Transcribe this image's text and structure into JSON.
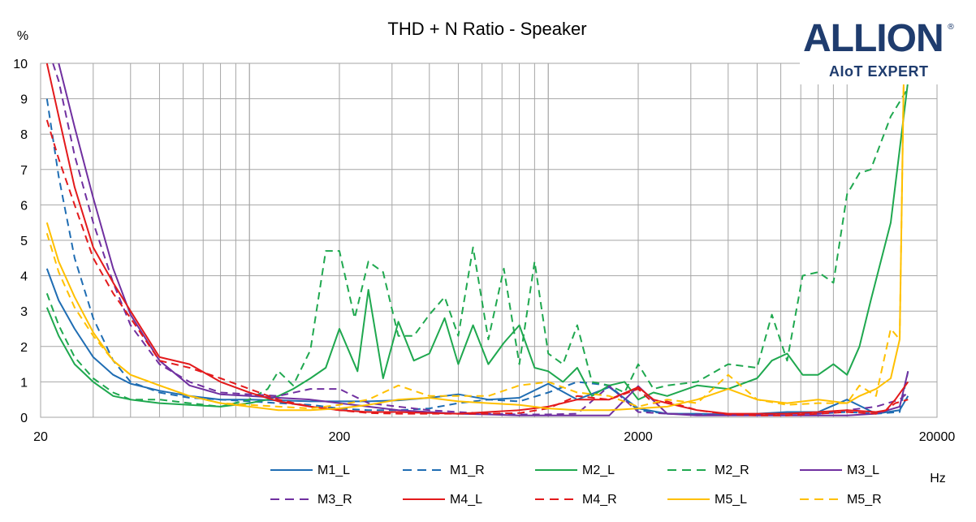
{
  "logo": {
    "main": "ALLION",
    "registered": "®",
    "tagline": "AIoT EXPERT"
  },
  "chart_data": {
    "type": "line",
    "title": "THD + N Ratio - Speaker",
    "ylabel": "%",
    "xlabel": "Hz",
    "xscale": "log",
    "xlim": [
      20,
      20000
    ],
    "ylim": [
      0,
      10
    ],
    "xticks": [
      "20",
      "200",
      "2000",
      "20000"
    ],
    "yticks": [
      "0",
      "1",
      "2",
      "3",
      "4",
      "5",
      "6",
      "7",
      "8",
      "9",
      "10"
    ],
    "grid": true,
    "legend_position": "bottom",
    "series": [
      {
        "name": "M1_L",
        "color": "#1f6db3",
        "dash": false,
        "x": [
          21,
          23,
          26,
          30,
          35,
          40,
          50,
          63,
          80,
          100,
          125,
          160,
          200,
          250,
          315,
          400,
          500,
          630,
          800,
          1000,
          1250,
          1600,
          2000,
          2500,
          3150,
          4000,
          5000,
          6300,
          8000,
          10000,
          12500,
          15000,
          16000
        ],
        "y": [
          4.2,
          3.3,
          2.5,
          1.7,
          1.2,
          0.95,
          0.75,
          0.6,
          0.5,
          0.5,
          0.48,
          0.45,
          0.45,
          0.45,
          0.48,
          0.55,
          0.65,
          0.5,
          0.55,
          0.95,
          0.5,
          0.85,
          0.25,
          0.1,
          0.1,
          0.08,
          0.1,
          0.15,
          0.15,
          0.5,
          0.1,
          0.2,
          0.6
        ]
      },
      {
        "name": "M1_R",
        "color": "#1f6db3",
        "dash": true,
        "x": [
          21,
          23,
          26,
          30,
          35,
          40,
          50,
          63,
          80,
          100,
          125,
          160,
          200,
          250,
          315,
          400,
          500,
          630,
          800,
          1000,
          1250,
          1600,
          2000,
          2500,
          3150,
          4000,
          5000,
          6300,
          8000,
          10000,
          12500,
          15000,
          16000
        ],
        "y": [
          9.0,
          6.8,
          4.5,
          2.8,
          1.6,
          1.0,
          0.7,
          0.55,
          0.5,
          0.45,
          0.4,
          0.35,
          0.25,
          0.2,
          0.2,
          0.25,
          0.4,
          0.5,
          0.45,
          0.7,
          1.0,
          0.9,
          0.2,
          0.1,
          0.08,
          0.08,
          0.08,
          0.1,
          0.1,
          0.15,
          0.1,
          0.15,
          1.3
        ]
      },
      {
        "name": "M2_L",
        "color": "#1fa84f",
        "dash": false,
        "x": [
          21,
          23,
          26,
          30,
          35,
          40,
          50,
          63,
          80,
          100,
          115,
          125,
          140,
          160,
          180,
          200,
          230,
          250,
          280,
          315,
          355,
          400,
          450,
          500,
          560,
          630,
          710,
          800,
          900,
          1000,
          1120,
          1250,
          1400,
          1600,
          1800,
          2000,
          2250,
          2500,
          3150,
          4000,
          5000,
          5600,
          6300,
          7100,
          8000,
          9000,
          10000,
          11000,
          12000,
          14000,
          16000
        ],
        "y": [
          3.1,
          2.3,
          1.5,
          1.0,
          0.6,
          0.5,
          0.4,
          0.35,
          0.3,
          0.4,
          0.5,
          0.6,
          0.8,
          1.1,
          1.4,
          2.5,
          1.3,
          3.6,
          1.1,
          2.7,
          1.6,
          1.8,
          2.8,
          1.5,
          2.6,
          1.5,
          2.1,
          2.6,
          1.4,
          1.3,
          1.0,
          1.4,
          0.6,
          0.9,
          1.0,
          0.5,
          0.7,
          0.6,
          0.9,
          0.8,
          1.1,
          1.6,
          1.8,
          1.2,
          1.2,
          1.5,
          1.2,
          2.0,
          3.3,
          5.5,
          9.5
        ]
      },
      {
        "name": "M2_R",
        "color": "#1fa84f",
        "dash": true,
        "x": [
          21,
          23,
          26,
          30,
          35,
          40,
          50,
          63,
          80,
          100,
          115,
          125,
          140,
          160,
          180,
          200,
          225,
          250,
          280,
          315,
          355,
          400,
          450,
          500,
          560,
          630,
          710,
          800,
          900,
          1000,
          1120,
          1250,
          1400,
          1600,
          1800,
          2000,
          2250,
          2500,
          3150,
          4000,
          5000,
          5600,
          6300,
          7100,
          8000,
          9000,
          10000,
          11000,
          12000,
          14000,
          16000
        ],
        "y": [
          3.5,
          2.6,
          1.7,
          1.1,
          0.7,
          0.5,
          0.5,
          0.4,
          0.3,
          0.5,
          0.8,
          1.3,
          0.9,
          1.9,
          4.7,
          4.7,
          2.8,
          4.4,
          4.1,
          2.3,
          2.3,
          2.9,
          3.4,
          2.3,
          4.8,
          2.2,
          4.2,
          1.5,
          4.4,
          1.8,
          1.5,
          2.6,
          1.0,
          0.9,
          0.7,
          1.5,
          0.8,
          0.9,
          1.0,
          1.5,
          1.4,
          2.9,
          1.6,
          4.0,
          4.1,
          3.8,
          6.3,
          6.9,
          7.0,
          8.5,
          9.3
        ]
      },
      {
        "name": "M3_L",
        "color": "#7030a0",
        "dash": false,
        "x": [
          23,
          26,
          30,
          35,
          40,
          50,
          63,
          80,
          100,
          125,
          160,
          200,
          250,
          315,
          400,
          500,
          630,
          800,
          1000,
          1250,
          1600,
          2000,
          2500,
          3150,
          4000,
          5000,
          6300,
          8000,
          10000,
          12500,
          15000,
          16000
        ],
        "y": [
          10.0,
          8.2,
          6.2,
          4.2,
          2.9,
          1.6,
          0.9,
          0.65,
          0.6,
          0.55,
          0.5,
          0.4,
          0.3,
          0.2,
          0.15,
          0.1,
          0.08,
          0.05,
          0.05,
          0.05,
          0.05,
          0.88,
          0.1,
          0.05,
          0.05,
          0.05,
          0.05,
          0.05,
          0.05,
          0.1,
          0.3,
          1.3
        ]
      },
      {
        "name": "M3_R",
        "color": "#7030a0",
        "dash": true,
        "x": [
          22,
          23,
          26,
          30,
          35,
          40,
          50,
          63,
          80,
          100,
          125,
          160,
          200,
          250,
          315,
          400,
          500,
          630,
          800,
          1000,
          1250,
          1600,
          2000,
          2500,
          3150,
          4000,
          5000,
          6300,
          8000,
          10000,
          12500,
          15000,
          16000
        ],
        "y": [
          10.0,
          9.5,
          7.4,
          5.5,
          3.8,
          2.6,
          1.5,
          1.0,
          0.7,
          0.65,
          0.6,
          0.8,
          0.8,
          0.4,
          0.3,
          0.2,
          0.15,
          0.1,
          0.08,
          0.08,
          0.1,
          0.88,
          0.15,
          0.1,
          0.08,
          0.08,
          0.08,
          0.1,
          0.1,
          0.2,
          0.3,
          0.5,
          0.7
        ]
      },
      {
        "name": "M4_L",
        "color": "#e31a1c",
        "dash": false,
        "x": [
          21,
          23,
          26,
          30,
          35,
          40,
          50,
          63,
          80,
          100,
          125,
          160,
          200,
          250,
          315,
          400,
          500,
          630,
          800,
          1000,
          1250,
          1600,
          2000,
          2250,
          2500,
          3150,
          4000,
          5000,
          6300,
          8000,
          10000,
          12500,
          13500,
          14500,
          16000
        ],
        "y": [
          10.0,
          8.5,
          6.5,
          4.8,
          3.8,
          3.0,
          1.7,
          1.5,
          1.0,
          0.7,
          0.45,
          0.3,
          0.2,
          0.15,
          0.15,
          0.12,
          0.1,
          0.15,
          0.2,
          0.3,
          0.5,
          0.5,
          0.85,
          0.5,
          0.4,
          0.2,
          0.1,
          0.1,
          0.1,
          0.15,
          0.2,
          0.15,
          0.2,
          0.5,
          1.0
        ]
      },
      {
        "name": "M4_R",
        "color": "#e31a1c",
        "dash": true,
        "x": [
          21,
          23,
          26,
          30,
          35,
          40,
          50,
          63,
          80,
          100,
          125,
          160,
          200,
          250,
          315,
          400,
          500,
          630,
          800,
          1000,
          1250,
          1600,
          2000,
          2250,
          2500,
          3150,
          4000,
          5000,
          6300,
          8000,
          10000,
          12500,
          13500,
          14500,
          16000
        ],
        "y": [
          8.4,
          7.3,
          6.0,
          4.5,
          3.5,
          2.8,
          1.6,
          1.4,
          1.1,
          0.8,
          0.5,
          0.3,
          0.2,
          0.12,
          0.1,
          0.1,
          0.1,
          0.1,
          0.12,
          0.25,
          0.6,
          0.5,
          0.8,
          0.4,
          0.45,
          0.2,
          0.08,
          0.05,
          0.05,
          0.1,
          0.15,
          0.1,
          0.2,
          0.4,
          0.5
        ]
      },
      {
        "name": "M5_L",
        "color": "#ffc000",
        "dash": false,
        "x": [
          21,
          23,
          26,
          30,
          35,
          40,
          50,
          63,
          80,
          100,
          125,
          160,
          200,
          250,
          315,
          400,
          500,
          630,
          800,
          1000,
          1250,
          1600,
          2000,
          2500,
          3150,
          4000,
          5000,
          6300,
          8000,
          10000,
          11000,
          12500,
          14000,
          15000,
          15500
        ],
        "y": [
          5.5,
          4.4,
          3.4,
          2.4,
          1.6,
          1.2,
          0.9,
          0.6,
          0.4,
          0.3,
          0.2,
          0.2,
          0.25,
          0.35,
          0.5,
          0.55,
          0.45,
          0.4,
          0.35,
          0.25,
          0.2,
          0.2,
          0.25,
          0.3,
          0.5,
          0.8,
          0.5,
          0.4,
          0.5,
          0.4,
          0.6,
          0.8,
          1.1,
          2.2,
          10.0
        ]
      },
      {
        "name": "M5_R",
        "color": "#ffc000",
        "dash": true,
        "x": [
          21,
          23,
          26,
          30,
          35,
          40,
          50,
          63,
          80,
          100,
          125,
          160,
          200,
          250,
          315,
          400,
          500,
          630,
          800,
          1000,
          1250,
          1600,
          2000,
          2500,
          3150,
          4000,
          5000,
          6300,
          8000,
          10000,
          11000,
          12500,
          14000,
          15000,
          15500
        ],
        "y": [
          5.2,
          4.1,
          3.1,
          2.3,
          1.6,
          1.2,
          0.9,
          0.6,
          0.4,
          0.35,
          0.3,
          0.25,
          0.35,
          0.5,
          0.9,
          0.6,
          0.6,
          0.6,
          0.9,
          1.0,
          0.7,
          0.6,
          0.3,
          0.5,
          0.4,
          1.2,
          0.5,
          0.35,
          0.4,
          0.4,
          0.9,
          0.6,
          2.5,
          2.2,
          10.0
        ]
      }
    ]
  }
}
